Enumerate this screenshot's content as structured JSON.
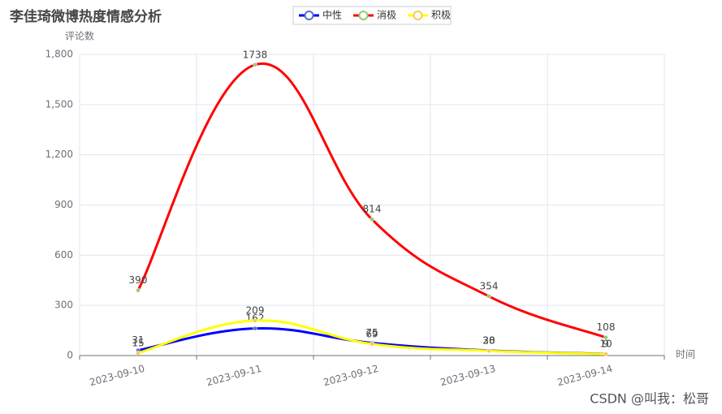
{
  "chart_data": {
    "type": "line",
    "title": "李佳琦微博热度情感分析",
    "y_label": "评论数",
    "x_label": "时间",
    "watermark": "CSDN @叫我：松哥",
    "categories": [
      "2023-09-10",
      "2023-09-11",
      "2023-09-12",
      "2023-09-13",
      "2023-09-14"
    ],
    "series": [
      {
        "name": "中性",
        "color": "#0000ff",
        "marker_color": "#5470c6",
        "values": [
          31,
          162,
          75,
          30,
          10
        ]
      },
      {
        "name": "消极",
        "color": "#ff0000",
        "marker_color": "#91cc75",
        "values": [
          390,
          1738,
          814,
          354,
          108
        ]
      },
      {
        "name": "积极",
        "color": "#ffff00",
        "marker_color": "#fac858",
        "values": [
          15,
          209,
          69,
          28,
          9
        ]
      }
    ],
    "ylim": [
      0,
      1800
    ],
    "yticks": [
      0,
      300,
      600,
      900,
      {
        "value": 1200,
        "label": "1,200"
      },
      {
        "value": 1500,
        "label": "1,500"
      },
      {
        "value": 1800,
        "label": "1,800"
      }
    ],
    "grid": true,
    "smooth": true
  }
}
